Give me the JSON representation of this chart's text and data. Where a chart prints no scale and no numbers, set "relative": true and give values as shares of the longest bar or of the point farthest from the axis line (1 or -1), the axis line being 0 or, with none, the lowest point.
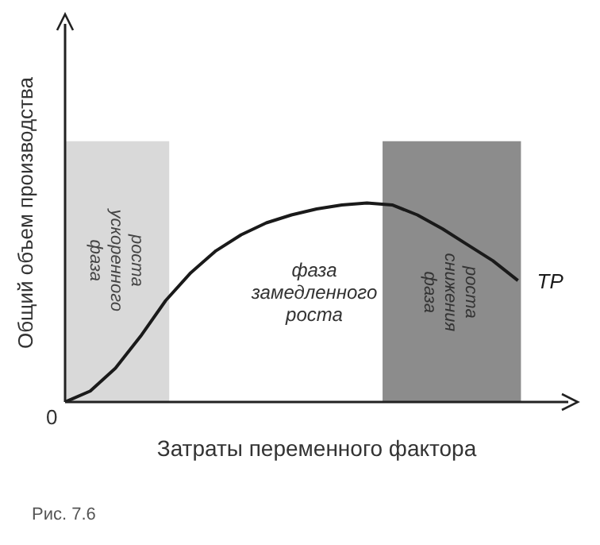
{
  "chart_data": {
    "type": "line",
    "relative": true,
    "xlabel": "Затраты переменного фактора",
    "ylabel": "Общий объем производства",
    "marker": "none",
    "line_style": "solid",
    "categories": [
      null,
      null,
      null,
      null,
      null,
      null,
      null,
      null,
      null,
      null,
      null,
      null,
      null,
      null,
      null,
      null,
      null,
      null,
      null
    ],
    "series": [
      {
        "name": "TP",
        "color": "#1a1a1a",
        "values": [
          0,
          0.055,
          0.17,
          0.33,
          0.51,
          0.65,
          0.76,
          0.84,
          0.9,
          0.94,
          0.97,
          0.99,
          1.0,
          0.99,
          0.94,
          0.87,
          0.79,
          0.71,
          0.61
        ]
      }
    ],
    "annotations": [
      "фаза замедленного роста",
      "Рис. 7.6",
      "0",
      "фаза ускоренного роста",
      "фаза снижения роста"
    ]
  }
}
